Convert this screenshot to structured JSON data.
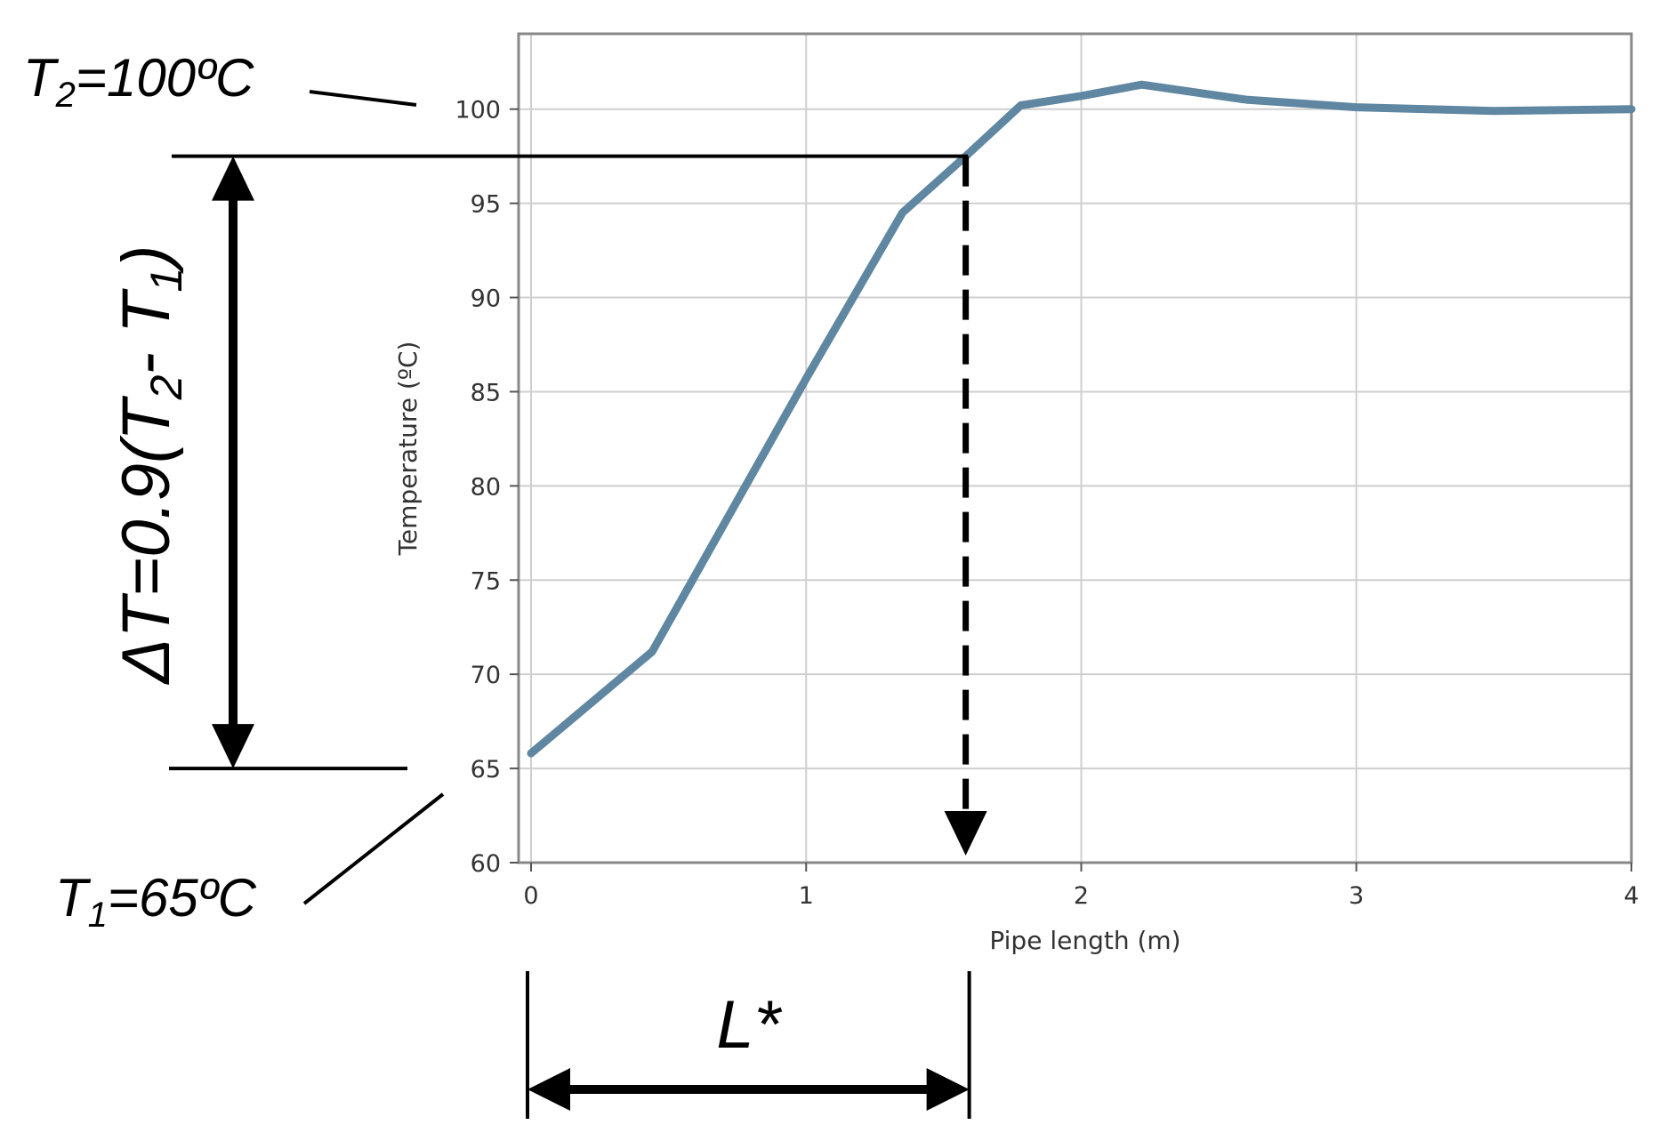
{
  "chart_data": {
    "type": "line",
    "xlabel": "Pipe length (m)",
    "ylabel": "Temperature (ºC)",
    "xlim": [
      0,
      4
    ],
    "ylim": [
      60,
      104
    ],
    "grid": true,
    "x_ticks": [
      "0",
      "1",
      "2",
      "3",
      "4"
    ],
    "y_ticks": [
      "60",
      "65",
      "70",
      "75",
      "80",
      "85",
      "90",
      "95",
      "100"
    ],
    "series": [
      {
        "color": "#5f87a1",
        "x": [
          0,
          0.44,
          1.0,
          1.35,
          1.58,
          1.78,
          2.0,
          2.22,
          2.6,
          3.0,
          3.5,
          4.0
        ],
        "y": [
          65.8,
          71.2,
          85.7,
          94.5,
          97.5,
          100.2,
          100.7,
          101.3,
          100.5,
          100.1,
          99.9,
          100.0
        ]
      }
    ],
    "annotations": {
      "t2": {
        "base": "T",
        "sub": "2",
        "rest": "=100ºC",
        "value": 100
      },
      "t1": {
        "base": "T",
        "sub": "1",
        "rest": "=65ºC",
        "value": 65
      },
      "delta": {
        "prefix": "ΔT=0.9(T",
        "sub_a": "2",
        "mid": "- T",
        "sub_b": "1",
        "suffix": ")",
        "value": 97.5
      },
      "lstar": {
        "text": "L*",
        "x_value": 1.58
      }
    }
  }
}
